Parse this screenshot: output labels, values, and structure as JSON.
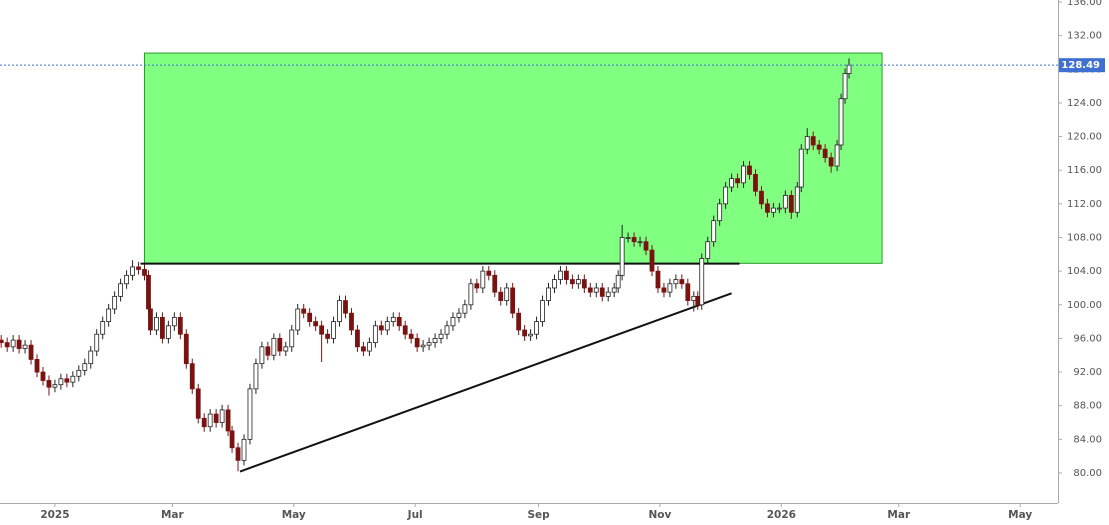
{
  "chart_data": {
    "type": "candlestick",
    "candles": {
      "x": [
        -27,
        -24,
        -21,
        -18,
        -15,
        -12,
        -9,
        -6,
        -3,
        0,
        3,
        6,
        9,
        12,
        15,
        18,
        21,
        24,
        27,
        30,
        33,
        36,
        39,
        42,
        45,
        47,
        48,
        51,
        54,
        57,
        60,
        63,
        66,
        69,
        72,
        75,
        78,
        81,
        84,
        87,
        89,
        92,
        95,
        98,
        101,
        104,
        107,
        110,
        113,
        116,
        119,
        122,
        125,
        128,
        131,
        134,
        137,
        140,
        143,
        146,
        149,
        152,
        155,
        158,
        161,
        164,
        167,
        170,
        173,
        176,
        179,
        182,
        185,
        188,
        191,
        194,
        197,
        200,
        203,
        206,
        209,
        212,
        215,
        218,
        221,
        224,
        227,
        230,
        233,
        236,
        239,
        242,
        245,
        248,
        251,
        254,
        257,
        260,
        263,
        266,
        269,
        272,
        275,
        278,
        281,
        283,
        285,
        288,
        291,
        294,
        297,
        300,
        303,
        306,
        309,
        312,
        315,
        318,
        321,
        323,
        325,
        328,
        331,
        334,
        337,
        340,
        343,
        346,
        349,
        352,
        355,
        358,
        361,
        364,
        367,
        370,
        373,
        375,
        378,
        381,
        384,
        387,
        390,
        393,
        395,
        397,
        399
      ],
      "open": [
        95.8,
        95.5,
        95,
        95.8,
        94.8,
        95.2,
        93.5,
        92,
        91,
        90.2,
        90.5,
        91.2,
        90.8,
        91.5,
        92.2,
        93,
        94.5,
        96.5,
        98,
        99.5,
        101,
        102.5,
        103.5,
        104.5,
        104.2,
        103.5,
        99.5,
        97,
        98.5,
        96,
        97.5,
        98.5,
        96.5,
        93,
        90,
        86.5,
        85.5,
        87,
        86,
        87.5,
        85,
        83,
        81.5,
        84,
        90,
        93,
        95,
        94,
        96,
        94.5,
        95,
        97,
        99.5,
        99,
        98,
        97.5,
        96.5,
        96,
        98,
        100.5,
        99,
        97,
        95,
        94.5,
        95.5,
        97.5,
        97,
        98,
        98.5,
        97.5,
        96.5,
        96,
        95,
        95.2,
        95.5,
        96,
        96.5,
        97.5,
        98.5,
        99,
        100,
        102.5,
        102,
        104,
        103.5,
        101.5,
        100.5,
        102,
        99,
        97,
        96.3,
        96.5,
        98,
        100.5,
        102,
        103,
        104,
        103,
        102.5,
        103,
        102,
        101.5,
        102,
        101,
        101.5,
        102,
        103.5,
        108,
        108,
        107.5,
        107.5,
        106.5,
        104,
        102,
        101.5,
        102.5,
        103,
        102.5,
        100.5,
        101,
        100,
        105.5,
        107.5,
        110,
        112,
        114,
        115,
        114.5,
        116.5,
        115.5,
        113.5,
        112,
        111,
        111.5,
        111.5,
        113,
        111,
        114,
        118.5,
        120,
        119,
        118.5,
        117.5,
        116.5,
        119,
        124.5,
        127.5
      ],
      "high": [
        96.4,
        96.1,
        96.4,
        96.4,
        95.8,
        95.8,
        94.1,
        92.6,
        91.6,
        91.1,
        91.8,
        91.8,
        92.1,
        92.8,
        93.6,
        95.1,
        97.1,
        98.6,
        100.1,
        101.6,
        103.1,
        104.1,
        105.3,
        105.1,
        104.8,
        104.1,
        100.1,
        99.1,
        99.1,
        98.1,
        99.1,
        99.1,
        97.1,
        93.6,
        90.6,
        87.1,
        87.6,
        87.6,
        88.1,
        88.1,
        85.6,
        83.6,
        84.6,
        90.6,
        93.6,
        95.6,
        95.6,
        96.6,
        96.6,
        95.6,
        97.6,
        100.1,
        100.1,
        99.6,
        98.6,
        98.1,
        97.1,
        98.6,
        101.1,
        101.1,
        99.6,
        97.6,
        95.6,
        96.1,
        98.1,
        98.1,
        98.6,
        99.1,
        99.1,
        98.1,
        97.1,
        96.6,
        95.8,
        96.1,
        96.6,
        97.1,
        98.1,
        99.1,
        99.6,
        100.6,
        103.1,
        103.1,
        104.6,
        104.6,
        104.1,
        102.1,
        102.6,
        102.6,
        99.6,
        97.6,
        97.1,
        98.6,
        101.1,
        102.6,
        103.6,
        104.6,
        104.6,
        103.6,
        103.6,
        103.6,
        102.6,
        102.6,
        102.6,
        102.1,
        102.6,
        104.1,
        109.5,
        108.6,
        108.6,
        108.1,
        108.1,
        107.1,
        104.6,
        102.6,
        103.1,
        103.6,
        103.6,
        103.1,
        101.6,
        101.6,
        106.1,
        108.1,
        110.6,
        112.6,
        114.6,
        115.6,
        115.6,
        117.1,
        117.1,
        116.1,
        114.1,
        112.6,
        112.1,
        112.1,
        113.6,
        113.6,
        114.6,
        119.1,
        121,
        120.6,
        119.6,
        119.1,
        118.1,
        119.6,
        125.1,
        128.1,
        129.3
      ],
      "low": [
        94.9,
        94.4,
        94.4,
        94.2,
        94.2,
        92.9,
        91.4,
        90.4,
        89.2,
        89.6,
        89.9,
        90.2,
        90.2,
        90.9,
        91.6,
        92.4,
        93.9,
        95.9,
        97.4,
        98.9,
        100.4,
        101.9,
        102.9,
        103.6,
        102.9,
        98.9,
        96.4,
        96.4,
        95.4,
        95.4,
        96.9,
        95.9,
        92.4,
        89.4,
        85.9,
        84.9,
        84.9,
        85.4,
        85.4,
        84.4,
        82.4,
        80.2,
        80.9,
        83.4,
        89.4,
        92.4,
        93.4,
        93.4,
        93.9,
        93.9,
        94.4,
        96.4,
        98.4,
        97.4,
        96.9,
        93.2,
        95.4,
        95.4,
        97.4,
        98.4,
        96.4,
        94.4,
        93.9,
        93.9,
        94.9,
        96.4,
        96.4,
        97.4,
        96.9,
        95.9,
        95.4,
        94.4,
        94.4,
        94.6,
        94.9,
        95.4,
        95.9,
        96.9,
        97.9,
        98.4,
        99.4,
        101.4,
        101.4,
        102.9,
        100.9,
        99.9,
        99.9,
        98.4,
        96.4,
        95.7,
        95.7,
        95.9,
        97.4,
        99.9,
        101.4,
        102.4,
        102.4,
        101.9,
        101.9,
        101.4,
        100.9,
        100.9,
        100.4,
        100.4,
        100.9,
        101.4,
        102.9,
        107.4,
        106.9,
        106.9,
        105.9,
        103.4,
        101.4,
        100.9,
        100.9,
        101.9,
        101.9,
        99.9,
        99.2,
        99.4,
        99.4,
        104.9,
        106.9,
        109.4,
        111.4,
        113.4,
        113.9,
        113.9,
        114.9,
        112.9,
        111.4,
        110.4,
        110.4,
        110.9,
        110.9,
        110.2,
        110.4,
        113.4,
        117.9,
        118.4,
        117.9,
        116.9,
        115.7,
        115.9,
        118.4,
        123.9,
        126.9
      ],
      "close": [
        95.5,
        95,
        95.8,
        94.8,
        95.2,
        93.5,
        92,
        91,
        90.2,
        90.5,
        91.2,
        90.8,
        91.5,
        92.2,
        93,
        94.5,
        96.5,
        98,
        99.5,
        101,
        102.5,
        103.5,
        104.5,
        104.2,
        103.5,
        99.5,
        97,
        98.5,
        96,
        97.5,
        98.5,
        96.5,
        93,
        90,
        86.5,
        85.5,
        87,
        86,
        87.5,
        85,
        83,
        81.5,
        84,
        90,
        93,
        95,
        94,
        96,
        94.5,
        95,
        97,
        99.5,
        99,
        98,
        97.5,
        96.5,
        96,
        98,
        100.5,
        99,
        97,
        95,
        94.5,
        95.5,
        97.5,
        97,
        98,
        98.5,
        97.5,
        96.5,
        96,
        95,
        95.2,
        95.5,
        96,
        96.5,
        97.5,
        98.5,
        99,
        100,
        102.5,
        102,
        104,
        103.5,
        101.5,
        100.5,
        102,
        99,
        97,
        96.3,
        96.5,
        98,
        100.5,
        102,
        103,
        104,
        103,
        102.5,
        103,
        102,
        101.5,
        102,
        101,
        101.5,
        102,
        103.5,
        108,
        108,
        107.5,
        107.5,
        106.5,
        104,
        102,
        101.5,
        102.5,
        103,
        102.5,
        100.5,
        101,
        100,
        105.5,
        107.5,
        110,
        112,
        114,
        115,
        114.5,
        116.5,
        115.5,
        113.5,
        112,
        111,
        111.5,
        111.5,
        113,
        111,
        114,
        118.5,
        120,
        119,
        118.5,
        117.5,
        116.5,
        119,
        124.5,
        127.5,
        128.49
      ],
      "up_color": "#ffffff",
      "down_color": "#7a1212"
    },
    "xlim": [
      -27.6,
      504
    ],
    "xticks": [
      {
        "value": 0,
        "label": "2025"
      },
      {
        "value": 59,
        "label": "Mar"
      },
      {
        "value": 120,
        "label": "May"
      },
      {
        "value": 181,
        "label": "Jul"
      },
      {
        "value": 243,
        "label": "Sep"
      },
      {
        "value": 304,
        "label": "Nov"
      },
      {
        "value": 365,
        "label": "2026"
      },
      {
        "value": 424,
        "label": "Mar"
      },
      {
        "value": 485,
        "label": "May"
      }
    ],
    "ylim": [
      76.43,
      136.24
    ],
    "yticks": [
      {
        "value": 80,
        "label": "80.00"
      },
      {
        "value": 84,
        "label": "84.00"
      },
      {
        "value": 88,
        "label": "88.00"
      },
      {
        "value": 92,
        "label": "92.00"
      },
      {
        "value": 96,
        "label": "96.00"
      },
      {
        "value": 100,
        "label": "100.00"
      },
      {
        "value": 104,
        "label": "104.00"
      },
      {
        "value": 108,
        "label": "108.00"
      },
      {
        "value": 112,
        "label": "112.00"
      },
      {
        "value": 116,
        "label": "116.00"
      },
      {
        "value": 120,
        "label": "120.00"
      },
      {
        "value": 124,
        "label": "124.00"
      },
      {
        "value": 128,
        "label": "128.00"
      },
      {
        "value": 132,
        "label": "132.00"
      },
      {
        "value": 136,
        "label": "136.00"
      }
    ],
    "grid": false,
    "zone": {
      "x": [
        45,
        415.6
      ],
      "y": [
        104.93,
        129.93
      ],
      "color": "#80ff80"
    },
    "lines": [
      {
        "x": [
          43,
          344
        ],
        "y": [
          104.9,
          104.9
        ]
      },
      {
        "x": [
          93,
          340
        ],
        "y": [
          80.17,
          101.36
        ]
      }
    ],
    "last_price": 128.49,
    "last_price_color": "#3f6fd1"
  }
}
